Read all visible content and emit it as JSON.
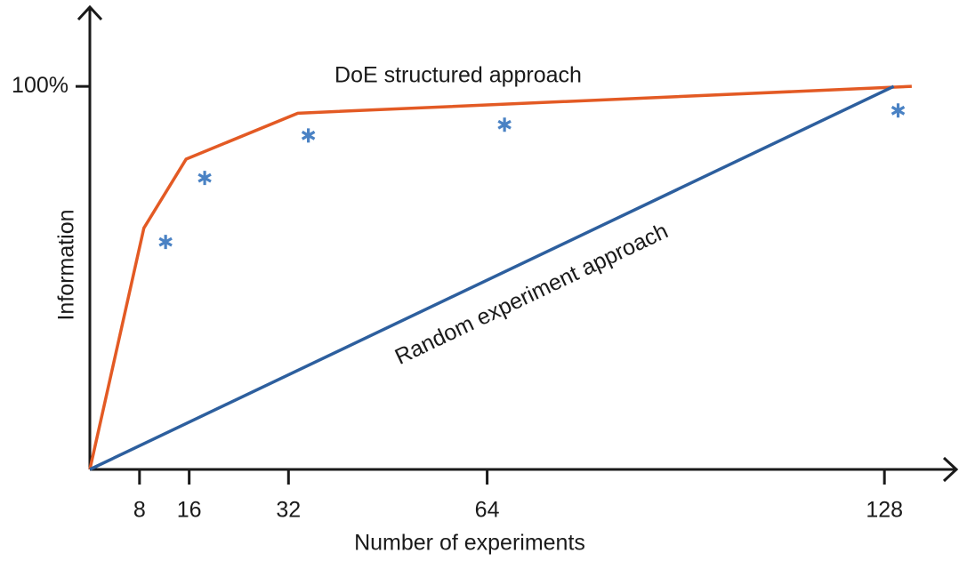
{
  "chart_data": {
    "type": "line",
    "x_label": "Number of experiments",
    "y_label": "Information",
    "xlim": [
      0,
      136
    ],
    "ylim": [
      0,
      120
    ],
    "xticks": [
      8,
      16,
      32,
      64,
      128
    ],
    "yticks": [
      {
        "value": 100,
        "label": "100%"
      }
    ],
    "series": [
      {
        "color": "#e35a24",
        "x": [
          0,
          8.7,
          15.5,
          33.5,
          132.4
        ],
        "values": [
          0,
          63,
          81,
          93,
          100
        ]
      },
      {
        "color": "#2d5f9e",
        "x": [
          0,
          129.5
        ],
        "values": [
          0,
          100
        ]
      },
      {
        "color": "#4a82c4",
        "marker": "asterisk",
        "x": [
          12.2,
          18.5,
          35.2,
          66.8,
          130.2
        ],
        "values": [
          59.4,
          76.1,
          87.2,
          90,
          93.7
        ]
      }
    ],
    "annotations": [
      "DoE structured approach",
      "Random experiment approach"
    ]
  }
}
